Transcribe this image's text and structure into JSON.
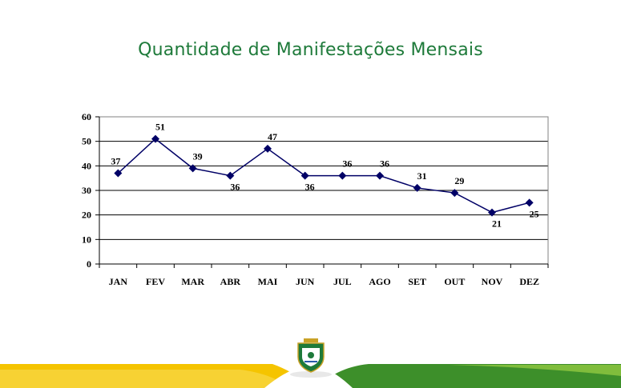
{
  "slide": {
    "title": "Quantidade de Manifestações Mensais"
  },
  "chart_data": {
    "type": "line",
    "title": "",
    "xlabel": "",
    "ylabel": "",
    "categories": [
      "JAN",
      "FEV",
      "MAR",
      "ABR",
      "MAI",
      "JUN",
      "JUL",
      "AGO",
      "SET",
      "OUT",
      "NOV",
      "DEZ"
    ],
    "values": [
      37,
      51,
      39,
      36,
      47,
      36,
      36,
      36,
      31,
      29,
      21,
      25
    ],
    "ylim": [
      0,
      60
    ],
    "yticks": [
      0,
      10,
      20,
      30,
      40,
      50,
      60
    ],
    "grid": true,
    "marker": "diamond",
    "line_color": "#000066",
    "data_labels": true
  },
  "colors": {
    "title": "#1e7a3a",
    "stripe_yellow": "#f5c400",
    "stripe_green": "#3d8f2a"
  },
  "footer": {
    "emblem_icon": "state-coat-of-arms-icon"
  }
}
